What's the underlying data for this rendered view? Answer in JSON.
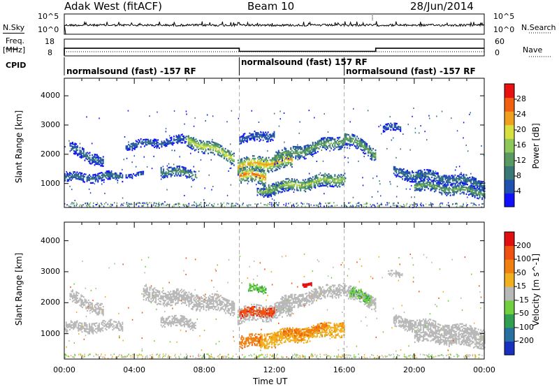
{
  "header": {
    "station": "Adak West (fitACF)",
    "beam": "Beam 10",
    "date": "28/Jun/2014"
  },
  "panel_labels": {
    "n_sky": "N.Sky",
    "n_search": "N.Search",
    "freq_top": "Freq.",
    "freq_unit": "[MHz]",
    "nave": "Nave",
    "cpid": "CPID",
    "noise_ticks": [
      "10^5",
      "10^0"
    ],
    "freq_ticks": [
      "18",
      "8"
    ],
    "nave_ticks": [
      "60",
      "0"
    ]
  },
  "cpid_segments": [
    {
      "label": "normalsound (fast) -157 RF",
      "start": 0,
      "end": 10
    },
    {
      "label": "normalsound (fast) 157 RF",
      "start": 10,
      "end": 16
    },
    {
      "label": "normalsound (fast) -157 RF",
      "start": 16,
      "end": 24
    }
  ],
  "chart_data": {
    "type": "heatmap",
    "x": {
      "label": "Time UT",
      "range_hours": [
        0,
        24
      ],
      "tick_labels": [
        "00:00",
        "04:00",
        "08:00",
        "12:00",
        "16:00",
        "20:00",
        "00:00"
      ]
    },
    "y": {
      "label": "Slant Range [km]",
      "range": [
        180,
        4600
      ],
      "tick_labels": [
        "1000",
        "2000",
        "3000",
        "4000"
      ]
    },
    "mode_change_times_hours": [
      10,
      16
    ],
    "frequency_mhz": {
      "segments": [
        {
          "start": 0,
          "end": 10,
          "value": 12.5
        },
        {
          "start": 10,
          "end": 17.8,
          "value": 10.5
        },
        {
          "start": 17.8,
          "end": 24,
          "value": 12.5
        }
      ]
    },
    "panels": [
      {
        "name": "power",
        "colorbar_label": "Power [dB]",
        "colorbar_ticks": [
          "4",
          "8",
          "12",
          "16",
          "20",
          "24",
          "28"
        ],
        "colorbar_range": [
          0,
          32
        ],
        "colors": [
          "#1010ff",
          "#2050b0",
          "#3a7878",
          "#5a9a62",
          "#8ec85a",
          "#d8e040",
          "#f0a020",
          "#f06010",
          "#e81010"
        ],
        "echo_bands": [
          {
            "t0": 0.3,
            "t1": 2.2,
            "r0": 2200,
            "r1": 1750,
            "w": 180,
            "p": 8
          },
          {
            "t0": 0.0,
            "t1": 3.3,
            "r0": 1200,
            "r1": 1250,
            "w": 140,
            "p": 9
          },
          {
            "t0": 3.5,
            "t1": 4.5,
            "r0": 1300,
            "r1": 1300,
            "w": 80,
            "p": 6
          },
          {
            "t0": 5.5,
            "t1": 7.5,
            "r0": 1450,
            "r1": 1300,
            "w": 160,
            "p": 12
          },
          {
            "t0": 3.5,
            "t1": 7.0,
            "r0": 2300,
            "r1": 2500,
            "w": 140,
            "p": 7
          },
          {
            "t0": 7.0,
            "t1": 9.7,
            "r0": 2500,
            "r1": 1900,
            "w": 220,
            "p": 20
          },
          {
            "t0": 9.9,
            "t1": 13.0,
            "r0": 1600,
            "r1": 1800,
            "w": 260,
            "p": 24
          },
          {
            "t0": 10.0,
            "t1": 11.5,
            "r0": 1300,
            "r1": 1250,
            "w": 260,
            "p": 26
          },
          {
            "t0": 12.0,
            "t1": 16.0,
            "r0": 1900,
            "r1": 2500,
            "w": 220,
            "p": 14
          },
          {
            "t0": 11.3,
            "t1": 16.0,
            "r0": 800,
            "r1": 1200,
            "w": 220,
            "p": 18
          },
          {
            "t0": 11.0,
            "t1": 12.5,
            "r0": 700,
            "r1": 900,
            "w": 120,
            "p": 16
          },
          {
            "t0": 10.0,
            "t1": 12.0,
            "r0": 2500,
            "r1": 2700,
            "w": 160,
            "p": 7
          },
          {
            "t0": 16.0,
            "t1": 17.8,
            "r0": 2600,
            "r1": 2000,
            "w": 220,
            "p": 14
          },
          {
            "t0": 18.2,
            "t1": 19.2,
            "r0": 2900,
            "r1": 2900,
            "w": 120,
            "p": 7
          },
          {
            "t0": 18.8,
            "t1": 24.0,
            "r0": 1400,
            "r1": 1000,
            "w": 200,
            "p": 9
          },
          {
            "t0": 20.0,
            "t1": 24.0,
            "r0": 950,
            "r1": 700,
            "w": 180,
            "p": 14
          }
        ]
      },
      {
        "name": "velocity",
        "colorbar_label": "Velocity [m s^-1]",
        "colorbar_ticks": [
          "200",
          "100",
          "50",
          "15",
          "-15",
          "-50",
          "-100",
          "-200"
        ],
        "colors": [
          "#1830c0",
          "#2870a0",
          "#30a050",
          "#70d040",
          "#b8b8b8",
          "#f0b020",
          "#f08010",
          "#f05010",
          "#e01010"
        ],
        "gray_bands": [
          {
            "t0": 0.3,
            "t1": 2.2,
            "r0": 2200,
            "r1": 1750,
            "w": 180
          },
          {
            "t0": 0.0,
            "t1": 3.3,
            "r0": 1200,
            "r1": 1250,
            "w": 160
          },
          {
            "t0": 5.5,
            "t1": 7.5,
            "r0": 1450,
            "r1": 1300,
            "w": 160
          },
          {
            "t0": 4.5,
            "t1": 9.7,
            "r0": 2300,
            "r1": 1900,
            "w": 260
          },
          {
            "t0": 9.9,
            "t1": 13.0,
            "r0": 1600,
            "r1": 1800,
            "w": 260
          },
          {
            "t0": 12.0,
            "t1": 16.0,
            "r0": 1900,
            "r1": 2500,
            "w": 220
          },
          {
            "t0": 16.0,
            "t1": 17.8,
            "r0": 2400,
            "r1": 2000,
            "w": 220
          },
          {
            "t0": 18.5,
            "t1": 19.3,
            "r0": 2900,
            "r1": 2900,
            "w": 100
          },
          {
            "t0": 18.8,
            "t1": 24.0,
            "r0": 1400,
            "r1": 1000,
            "w": 200
          },
          {
            "t0": 20.0,
            "t1": 24.0,
            "r0": 950,
            "r1": 700,
            "w": 180
          }
        ],
        "orange_bands": [
          {
            "t0": 10.0,
            "t1": 12.0,
            "r0": 1650,
            "r1": 1750,
            "w": 140,
            "c": 3
          },
          {
            "t0": 10.0,
            "t1": 11.3,
            "r0": 700,
            "r1": 800,
            "w": 180,
            "c": 2
          },
          {
            "t0": 11.2,
            "t1": 16.0,
            "r0": 800,
            "r1": 1200,
            "w": 240,
            "c": 1
          },
          {
            "t0": 12.5,
            "t1": 15.0,
            "r0": 1000,
            "r1": 1200,
            "w": 120,
            "c": 2
          }
        ],
        "green_bands": [
          {
            "t0": 16.3,
            "t1": 17.5,
            "r0": 2350,
            "r1": 2100,
            "w": 160
          },
          {
            "t0": 10.5,
            "t1": 11.5,
            "r0": 2450,
            "r1": 2450,
            "w": 120
          }
        ],
        "red_bands": [
          {
            "t0": 13.6,
            "t1": 14.1,
            "r0": 2630,
            "r1": 2630,
            "w": 60
          }
        ]
      }
    ]
  }
}
